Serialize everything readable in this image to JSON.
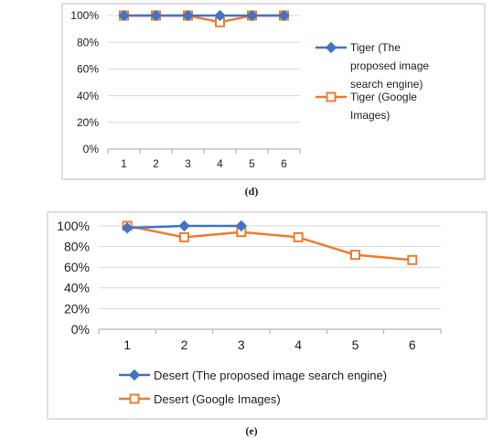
{
  "chart_data": [
    {
      "type": "line",
      "caption": "(d)",
      "x": [
        1,
        2,
        3,
        4,
        5,
        6
      ],
      "xticks": [
        "1",
        "2",
        "3",
        "4",
        "5",
        "6"
      ],
      "ylim": [
        0,
        100
      ],
      "yticks": [
        "0%",
        "20%",
        "40%",
        "60%",
        "80%",
        "100%"
      ],
      "ytick_values": [
        0,
        20,
        40,
        60,
        80,
        100
      ],
      "grid": "horizontal",
      "legend": "right",
      "series": [
        {
          "name": "Tiger (The proposed image search engine)",
          "legend_lines": [
            "Tiger (The",
            "proposed image",
            "search engine)"
          ],
          "values": [
            100,
            100,
            100,
            100,
            100,
            100
          ],
          "color": "#4472c4",
          "marker": "diamond"
        },
        {
          "name": "Tiger (Google Images)",
          "legend_lines": [
            "Tiger (Google",
            "Images)"
          ],
          "values": [
            100,
            100,
            100,
            95,
            100,
            100
          ],
          "color": "#ed7d31",
          "marker": "square"
        }
      ]
    },
    {
      "type": "line",
      "caption": "(e)",
      "x": [
        1,
        2,
        3,
        4,
        5,
        6
      ],
      "xticks": [
        "1",
        "2",
        "3",
        "4",
        "5",
        "6"
      ],
      "ylim": [
        0,
        100
      ],
      "yticks": [
        "0%",
        "20%",
        "40%",
        "60%",
        "80%",
        "100%"
      ],
      "ytick_values": [
        0,
        20,
        40,
        60,
        80,
        100
      ],
      "grid": "horizontal",
      "legend": "bottom",
      "series": [
        {
          "name": "Desert (The proposed image search engine)",
          "legend_lines": [
            "Desert (The proposed image search engine)"
          ],
          "values": [
            98,
            100,
            100,
            null,
            null,
            null
          ],
          "color": "#4472c4",
          "marker": "diamond"
        },
        {
          "name": "Desert (Google Images)",
          "legend_lines": [
            "Desert (Google Images)"
          ],
          "values": [
            100,
            89,
            94,
            89,
            72,
            67
          ],
          "color": "#ed7d31",
          "marker": "square"
        }
      ]
    }
  ]
}
